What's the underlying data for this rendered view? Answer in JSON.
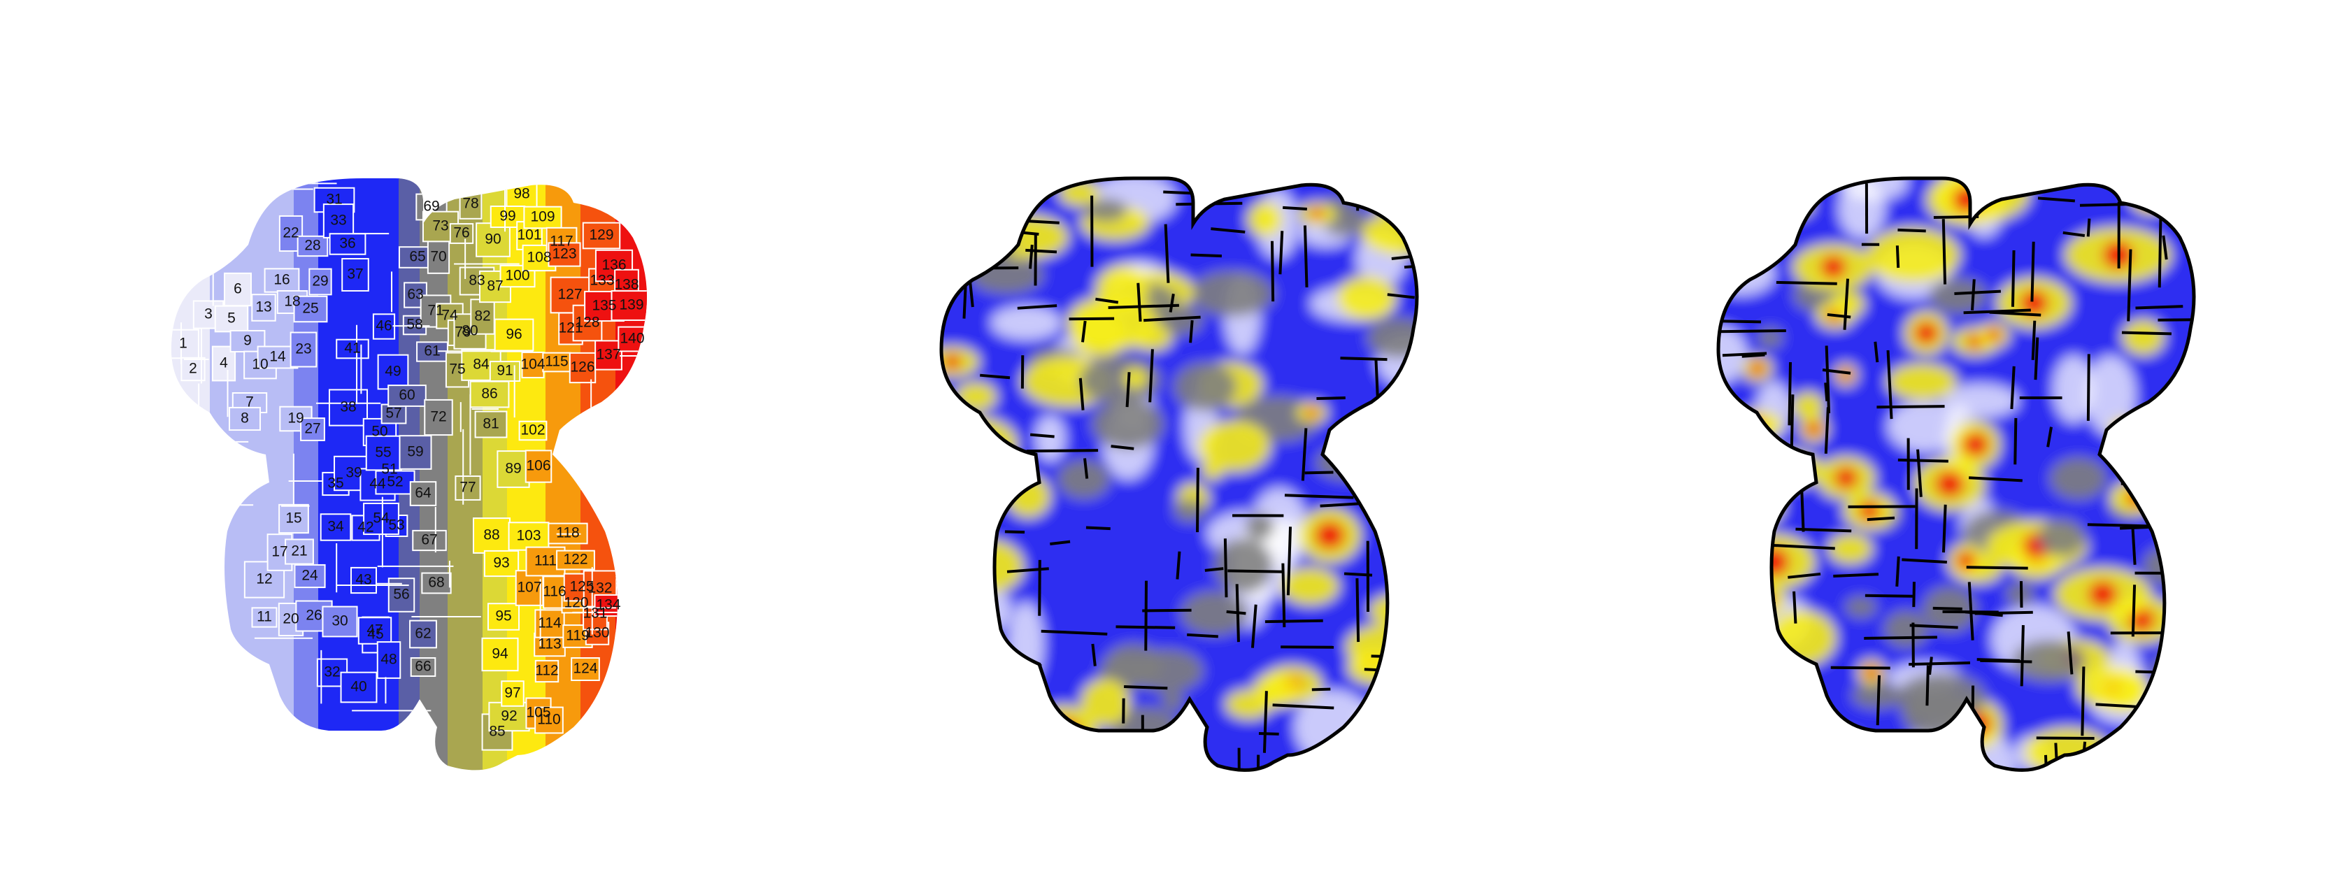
{
  "parcellation": {
    "colors": {
      "pale": "#eaeaf9",
      "lavender": "#b8bdf5",
      "periwinkle": "#7c83f0",
      "blue": "#1e28f5",
      "slate": "#5a5fa6",
      "gray": "#808080",
      "olive": "#a9a650",
      "yellow_green": "#dcd836",
      "yellow": "#fde910",
      "orange": "#f79a0c",
      "red_orange": "#f5520e",
      "red": "#ee1111"
    },
    "regions": [
      {
        "n": "1",
        "c": "pale"
      },
      {
        "n": "2",
        "c": "pale"
      },
      {
        "n": "3",
        "c": "pale"
      },
      {
        "n": "4",
        "c": "pale"
      },
      {
        "n": "5",
        "c": "pale"
      },
      {
        "n": "6",
        "c": "pale"
      },
      {
        "n": "7",
        "c": "lavender"
      },
      {
        "n": "8",
        "c": "lavender"
      },
      {
        "n": "9",
        "c": "lavender"
      },
      {
        "n": "10",
        "c": "lavender"
      },
      {
        "n": "11",
        "c": "lavender"
      },
      {
        "n": "12",
        "c": "lavender"
      },
      {
        "n": "13",
        "c": "lavender"
      },
      {
        "n": "14",
        "c": "lavender"
      },
      {
        "n": "15",
        "c": "lavender"
      },
      {
        "n": "16",
        "c": "lavender"
      },
      {
        "n": "17",
        "c": "lavender"
      },
      {
        "n": "18",
        "c": "lavender"
      },
      {
        "n": "19",
        "c": "lavender"
      },
      {
        "n": "20",
        "c": "lavender"
      },
      {
        "n": "21",
        "c": "lavender"
      },
      {
        "n": "22",
        "c": "periwinkle"
      },
      {
        "n": "23",
        "c": "periwinkle"
      },
      {
        "n": "24",
        "c": "periwinkle"
      },
      {
        "n": "25",
        "c": "periwinkle"
      },
      {
        "n": "26",
        "c": "periwinkle"
      },
      {
        "n": "27",
        "c": "periwinkle"
      },
      {
        "n": "28",
        "c": "periwinkle"
      },
      {
        "n": "29",
        "c": "periwinkle"
      },
      {
        "n": "30",
        "c": "periwinkle"
      },
      {
        "n": "31",
        "c": "blue"
      },
      {
        "n": "32",
        "c": "blue"
      },
      {
        "n": "33",
        "c": "blue"
      },
      {
        "n": "34",
        "c": "blue"
      },
      {
        "n": "35",
        "c": "blue"
      },
      {
        "n": "36",
        "c": "blue"
      },
      {
        "n": "37",
        "c": "blue"
      },
      {
        "n": "38",
        "c": "blue"
      },
      {
        "n": "39",
        "c": "blue"
      },
      {
        "n": "40",
        "c": "blue"
      },
      {
        "n": "41",
        "c": "blue"
      },
      {
        "n": "42",
        "c": "blue"
      },
      {
        "n": "43",
        "c": "blue"
      },
      {
        "n": "44",
        "c": "blue"
      },
      {
        "n": "45",
        "c": "blue"
      },
      {
        "n": "46",
        "c": "blue"
      },
      {
        "n": "47",
        "c": "blue"
      },
      {
        "n": "48",
        "c": "blue"
      },
      {
        "n": "49",
        "c": "blue"
      },
      {
        "n": "50",
        "c": "blue"
      },
      {
        "n": "51",
        "c": "blue"
      },
      {
        "n": "52",
        "c": "blue"
      },
      {
        "n": "53",
        "c": "blue"
      },
      {
        "n": "54",
        "c": "blue"
      },
      {
        "n": "55",
        "c": "blue"
      },
      {
        "n": "56",
        "c": "slate"
      },
      {
        "n": "57",
        "c": "slate"
      },
      {
        "n": "58",
        "c": "slate"
      },
      {
        "n": "59",
        "c": "slate"
      },
      {
        "n": "60",
        "c": "slate"
      },
      {
        "n": "61",
        "c": "slate"
      },
      {
        "n": "62",
        "c": "slate"
      },
      {
        "n": "63",
        "c": "slate"
      },
      {
        "n": "64",
        "c": "gray"
      },
      {
        "n": "65",
        "c": "slate"
      },
      {
        "n": "66",
        "c": "gray"
      },
      {
        "n": "67",
        "c": "gray"
      },
      {
        "n": "68",
        "c": "gray"
      },
      {
        "n": "69",
        "c": "gray"
      },
      {
        "n": "70",
        "c": "gray"
      },
      {
        "n": "71",
        "c": "gray"
      },
      {
        "n": "72",
        "c": "gray"
      },
      {
        "n": "73",
        "c": "olive"
      },
      {
        "n": "74",
        "c": "olive"
      },
      {
        "n": "75",
        "c": "olive"
      },
      {
        "n": "76",
        "c": "olive"
      },
      {
        "n": "77",
        "c": "olive"
      },
      {
        "n": "78",
        "c": "olive"
      },
      {
        "n": "79",
        "c": "olive"
      },
      {
        "n": "80",
        "c": "olive"
      },
      {
        "n": "81",
        "c": "olive"
      },
      {
        "n": "82",
        "c": "olive"
      },
      {
        "n": "83",
        "c": "olive"
      },
      {
        "n": "84",
        "c": "yellow_green"
      },
      {
        "n": "85",
        "c": "olive"
      },
      {
        "n": "86",
        "c": "yellow_green"
      },
      {
        "n": "87",
        "c": "yellow_green"
      },
      {
        "n": "88",
        "c": "yellow"
      },
      {
        "n": "89",
        "c": "yellow_green"
      },
      {
        "n": "90",
        "c": "yellow_green"
      },
      {
        "n": "91",
        "c": "yellow_green"
      },
      {
        "n": "92",
        "c": "yellow_green"
      },
      {
        "n": "93",
        "c": "yellow"
      },
      {
        "n": "94",
        "c": "yellow"
      },
      {
        "n": "95",
        "c": "yellow"
      },
      {
        "n": "96",
        "c": "yellow"
      },
      {
        "n": "97",
        "c": "yellow"
      },
      {
        "n": "98",
        "c": "yellow"
      },
      {
        "n": "99",
        "c": "yellow"
      },
      {
        "n": "100",
        "c": "yellow"
      },
      {
        "n": "101",
        "c": "yellow"
      },
      {
        "n": "102",
        "c": "yellow"
      },
      {
        "n": "103",
        "c": "yellow"
      },
      {
        "n": "104",
        "c": "orange"
      },
      {
        "n": "105",
        "c": "orange"
      },
      {
        "n": "106",
        "c": "orange"
      },
      {
        "n": "107",
        "c": "orange"
      },
      {
        "n": "108",
        "c": "yellow"
      },
      {
        "n": "109",
        "c": "yellow"
      },
      {
        "n": "110",
        "c": "orange"
      },
      {
        "n": "111",
        "c": "orange"
      },
      {
        "n": "112",
        "c": "orange"
      },
      {
        "n": "113",
        "c": "orange"
      },
      {
        "n": "114",
        "c": "orange"
      },
      {
        "n": "115",
        "c": "orange"
      },
      {
        "n": "116",
        "c": "orange"
      },
      {
        "n": "117",
        "c": "orange"
      },
      {
        "n": "118",
        "c": "orange"
      },
      {
        "n": "119",
        "c": "orange"
      },
      {
        "n": "120",
        "c": "orange"
      },
      {
        "n": "121",
        "c": "red_orange"
      },
      {
        "n": "122",
        "c": "orange"
      },
      {
        "n": "123",
        "c": "red_orange"
      },
      {
        "n": "124",
        "c": "orange"
      },
      {
        "n": "125",
        "c": "red_orange"
      },
      {
        "n": "126",
        "c": "red_orange"
      },
      {
        "n": "127",
        "c": "red_orange"
      },
      {
        "n": "128",
        "c": "red_orange"
      },
      {
        "n": "129",
        "c": "red_orange"
      },
      {
        "n": "130",
        "c": "red_orange"
      },
      {
        "n": "131",
        "c": "red_orange"
      },
      {
        "n": "132",
        "c": "red_orange"
      },
      {
        "n": "133",
        "c": "red_orange"
      },
      {
        "n": "134",
        "c": "red"
      },
      {
        "n": "135",
        "c": "red"
      },
      {
        "n": "136",
        "c": "red"
      },
      {
        "n": "137",
        "c": "red"
      },
      {
        "n": "138",
        "c": "red"
      },
      {
        "n": "139",
        "c": "red"
      },
      {
        "n": "140",
        "c": "red"
      }
    ]
  },
  "heatmap_colors": {
    "background": "#ffffff",
    "low": "#1a1af0",
    "mid": "#808080",
    "high": "#f7ee1a",
    "peak": "#ee1111",
    "outline": "#000000"
  }
}
